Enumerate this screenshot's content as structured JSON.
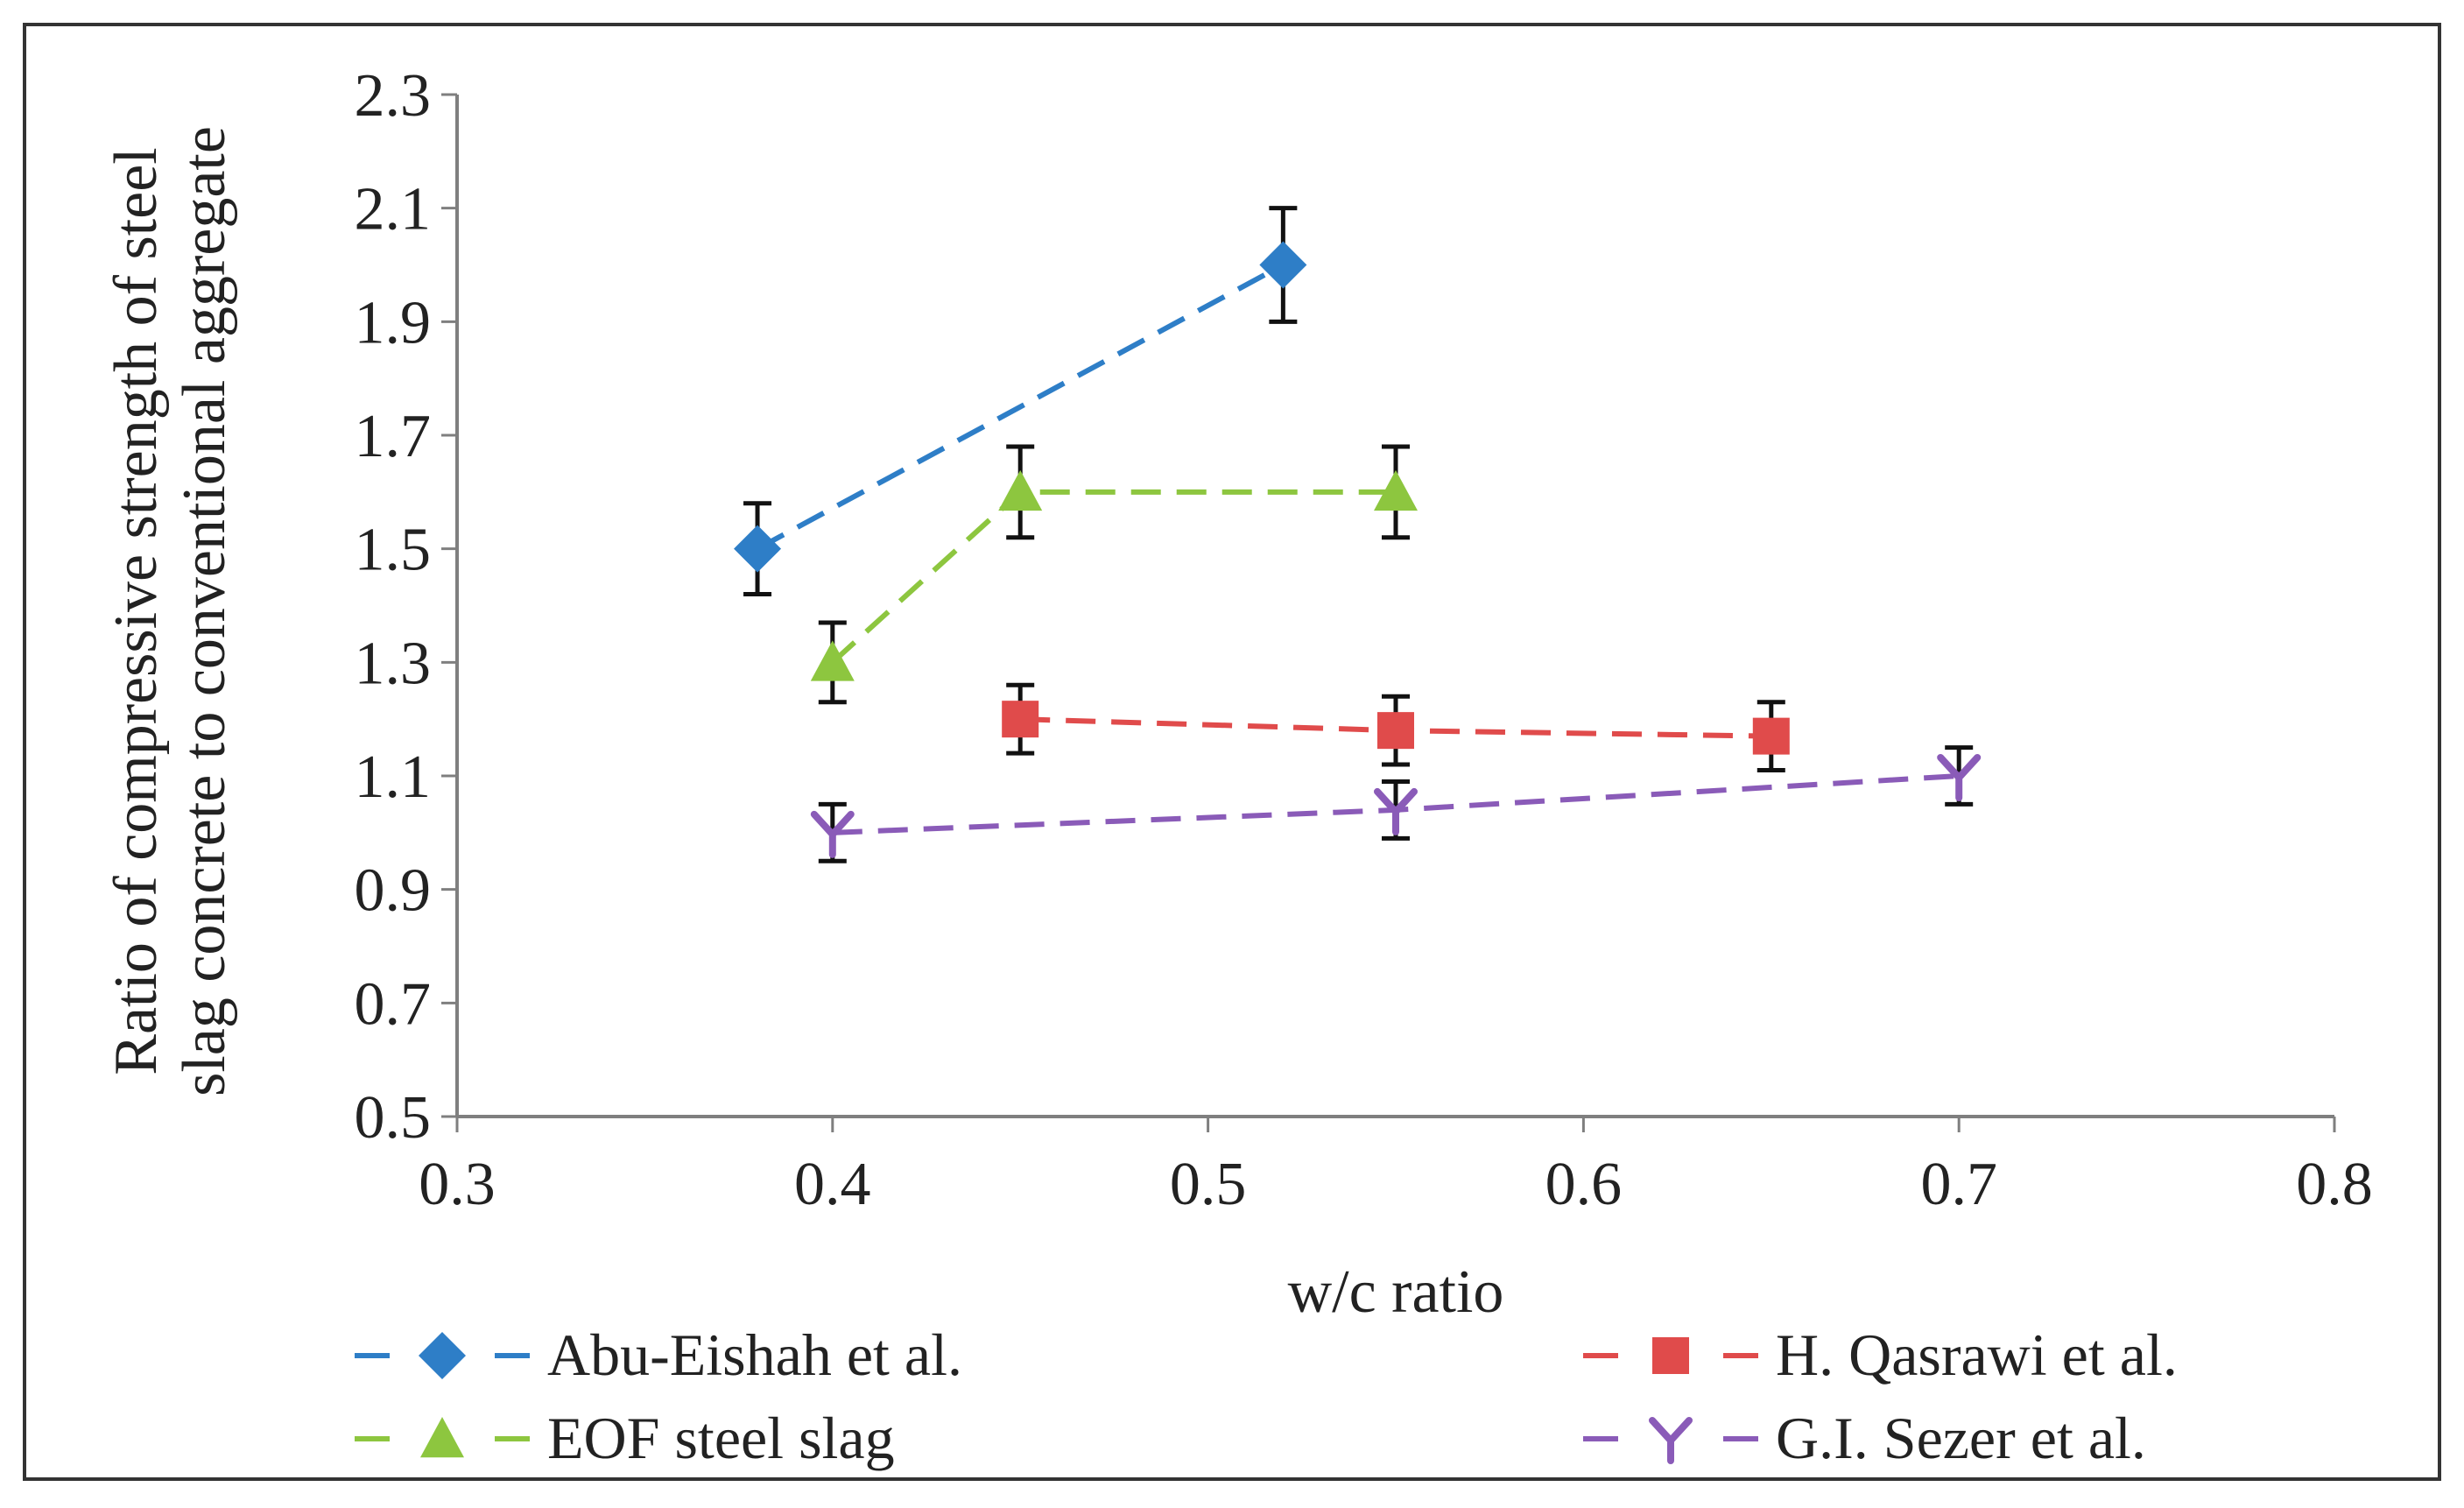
{
  "chart_data": {
    "type": "scatter",
    "title": "",
    "xlabel": "w/c ratio",
    "ylabel_lines": [
      "Ratio of compressive strength of steel",
      "slag concrete to conventional aggregate"
    ],
    "xlim": [
      0.3,
      0.8
    ],
    "ylim": [
      0.5,
      2.3
    ],
    "x_ticks": [
      0.3,
      0.4,
      0.5,
      0.6,
      0.7,
      0.8
    ],
    "x_tick_labels": [
      "0.3",
      "0.4",
      "0.5",
      "0.6",
      "0.7",
      "0.8"
    ],
    "y_ticks": [
      0.5,
      0.7,
      0.9,
      1.1,
      1.3,
      1.5,
      1.7,
      1.9,
      2.1,
      2.3
    ],
    "y_tick_labels": [
      "0.5",
      "0.7",
      "0.9",
      "1.1",
      "1.3",
      "1.5",
      "1.7",
      "1.9",
      "2.1",
      "2.3"
    ],
    "grid": false,
    "legend_position": "bottom",
    "series": [
      {
        "name": "Abu-Eishah et al.",
        "color": "#2E7EC7",
        "marker": "diamond",
        "line_style": "dashed",
        "points": [
          {
            "x": 0.38,
            "y": 1.5,
            "err": 0.08
          },
          {
            "x": 0.52,
            "y": 2.0,
            "err": 0.1
          }
        ]
      },
      {
        "name": "H. Qasrawi et al.",
        "color": "#E04B4B",
        "marker": "square",
        "line_style": "dashed",
        "points": [
          {
            "x": 0.45,
            "y": 1.2,
            "err": 0.06
          },
          {
            "x": 0.55,
            "y": 1.18,
            "err": 0.06
          },
          {
            "x": 0.65,
            "y": 1.17,
            "err": 0.06
          }
        ]
      },
      {
        "name": "EOF steel slag",
        "color": "#8DC63F",
        "marker": "triangle",
        "line_style": "dashed",
        "points": [
          {
            "x": 0.4,
            "y": 1.3,
            "err": 0.07
          },
          {
            "x": 0.45,
            "y": 1.6,
            "err": 0.08
          },
          {
            "x": 0.55,
            "y": 1.6,
            "err": 0.08
          }
        ]
      },
      {
        "name": "G.I. Sezer et al.",
        "color": "#8A5BB8",
        "marker": "star",
        "line_style": "dashed",
        "points": [
          {
            "x": 0.4,
            "y": 1.0,
            "err": 0.05
          },
          {
            "x": 0.55,
            "y": 1.04,
            "err": 0.05
          },
          {
            "x": 0.7,
            "y": 1.1,
            "err": 0.05
          }
        ]
      }
    ]
  }
}
